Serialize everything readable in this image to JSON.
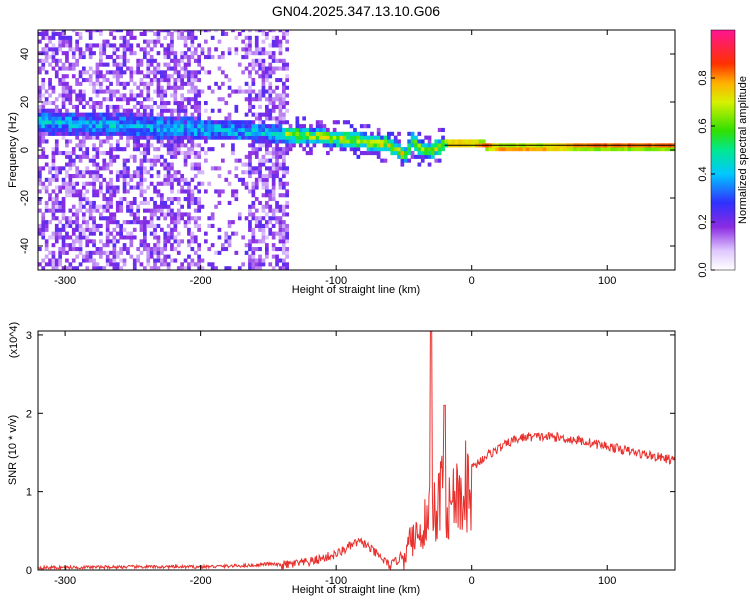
{
  "title": "GN04.2025.347.13.10.G06",
  "chart_data": [
    {
      "type": "heatmap",
      "xlabel": "Height of straight line (km)",
      "ylabel": "Frequency (Hz)",
      "xlim": [
        -320,
        150
      ],
      "ylim": [
        -50,
        50
      ],
      "x_ticks": [
        -300,
        -200,
        -100,
        0,
        100
      ],
      "y_ticks": [
        -40,
        -20,
        0,
        20,
        40
      ],
      "colorbar": {
        "label": "Normalized spectral amplitude",
        "range": [
          0,
          1
        ],
        "ticks": [
          "0.0",
          "0.2",
          "0.4",
          "0.6",
          "0.8"
        ]
      },
      "ridge": {
        "x": [
          -320,
          -280,
          -240,
          -200,
          -170,
          -140,
          -120,
          -100,
          -80,
          -60,
          -50,
          -45,
          -40,
          -30,
          -20,
          -10,
          0,
          20,
          50,
          80,
          100,
          150
        ],
        "y": [
          11,
          10,
          9,
          8,
          7,
          6,
          5,
          4,
          3,
          1,
          -3,
          3,
          0,
          -1,
          2,
          2,
          2,
          0,
          0,
          1,
          1,
          1
        ]
      },
      "reference_line": {
        "y": 2
      }
    },
    {
      "type": "line",
      "xlabel": "Height of straight line (km)",
      "ylabel": "SNR (10 * v/v)",
      "y_scale_label": "(x10^4)",
      "xlim": [
        -320,
        150
      ],
      "ylim": [
        0,
        3.05
      ],
      "x_ticks": [
        -300,
        -200,
        -100,
        0,
        100
      ],
      "y_ticks": [
        0,
        1,
        2,
        3
      ],
      "color": "#e8302c",
      "series": [
        {
          "x": [
            -320,
            -250,
            -200,
            -160,
            -150,
            -140,
            -120,
            -110,
            -100,
            -90,
            -85,
            -80,
            -70,
            -60,
            -50,
            -45,
            -40,
            -35,
            -31,
            -30,
            -29,
            -25,
            -21,
            -20,
            -19,
            -15,
            -10,
            0,
            10,
            20,
            30,
            40,
            60,
            80,
            100,
            120,
            150
          ],
          "y": [
            0.03,
            0.04,
            0.04,
            0.06,
            0.08,
            0.06,
            0.1,
            0.15,
            0.2,
            0.3,
            0.35,
            0.35,
            0.2,
            0.05,
            0.2,
            0.4,
            0.55,
            0.65,
            0.8,
            3.05,
            0.9,
            0.75,
            2.1,
            1.3,
            0.85,
            0.95,
            1.1,
            1.3,
            1.45,
            1.55,
            1.65,
            1.7,
            1.7,
            1.65,
            1.58,
            1.5,
            1.4
          ]
        }
      ]
    }
  ]
}
